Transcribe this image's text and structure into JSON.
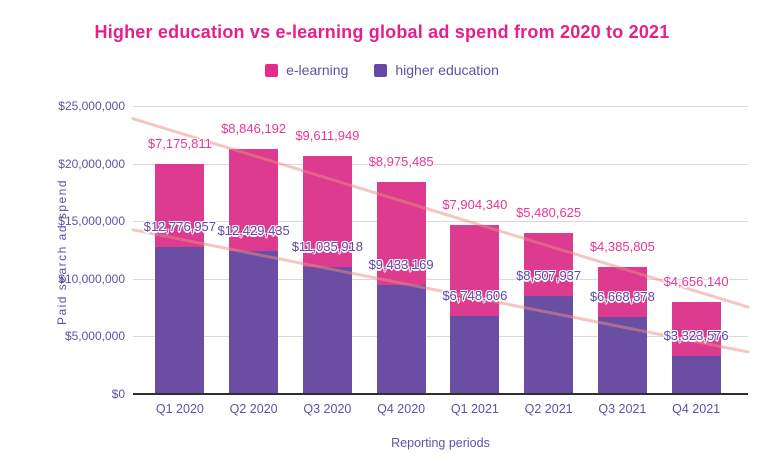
{
  "title": "Higher education vs e-learning global ad spend from 2020 to 2021",
  "legend": [
    {
      "label": "e-learning",
      "color": "#e52b8d"
    },
    {
      "label": "higher education",
      "color": "#6648a8"
    }
  ],
  "colors": {
    "title": "#e71f8a",
    "axis_text": "#5f51a8",
    "gridline": "#d9d9d9",
    "axis_line": "#2f2f2f",
    "elearning_label": "#e73795",
    "higher_education_label": "#5c4aa6"
  },
  "chart_data": {
    "type": "bar",
    "stacked": true,
    "title": "Higher education vs e-learning global ad spend from 2020 to 2021",
    "xlabel": "Reporting periods",
    "ylabel": "Paid search ad spend",
    "ylim": [
      0,
      25000000
    ],
    "grid": true,
    "legend_position": "top",
    "categories": [
      "Q1 2020",
      "Q2 2020",
      "Q3 2020",
      "Q4 2020",
      "Q1 2021",
      "Q2 2021",
      "Q3 2021",
      "Q4 2021"
    ],
    "series": [
      {
        "name": "higher education",
        "color": "#6a4ea3",
        "label_color": "#5c4aa6",
        "values": [
          12776957,
          12429435,
          11035918,
          9433169,
          6748606,
          8507937,
          6668378,
          3323576
        ],
        "value_labels": [
          "$12,776,957",
          "$12,429,435",
          "$11,035,918",
          "$9,433,169",
          "$6,748,606",
          "$8,507,937",
          "$6,668,378",
          "$3,323,576"
        ]
      },
      {
        "name": "e-learning",
        "color": "#dd3b8f",
        "label_color": "#e73795",
        "values": [
          7175811,
          8846192,
          9611949,
          8975485,
          7904340,
          5480625,
          4385805,
          4656140
        ],
        "value_labels": [
          "$7,175,811",
          "$8,846,192",
          "$9,611,949",
          "$8,975,485",
          "$7,904,340",
          "$5,480,625",
          "$4,385,805",
          "$4,656,140"
        ]
      }
    ],
    "yticks": [
      {
        "value": 0,
        "label": "$0"
      },
      {
        "value": 5000000,
        "label": "$5,000,000"
      },
      {
        "value": 10000000,
        "label": "$10,000,000"
      },
      {
        "value": 15000000,
        "label": "$15,000,000"
      },
      {
        "value": 20000000,
        "label": "$20,000,000"
      },
      {
        "value": 25000000,
        "label": "$25,000,000"
      }
    ],
    "trendlines": [
      {
        "name": "total-trend",
        "start_value": 23900000,
        "end_value": 7550000,
        "color": "#ec8d82",
        "opacity": 0.5
      },
      {
        "name": "higher-education-trend",
        "start_value": 14250000,
        "end_value": 3650000,
        "color": "#ec8d82",
        "opacity": 0.5
      }
    ]
  }
}
